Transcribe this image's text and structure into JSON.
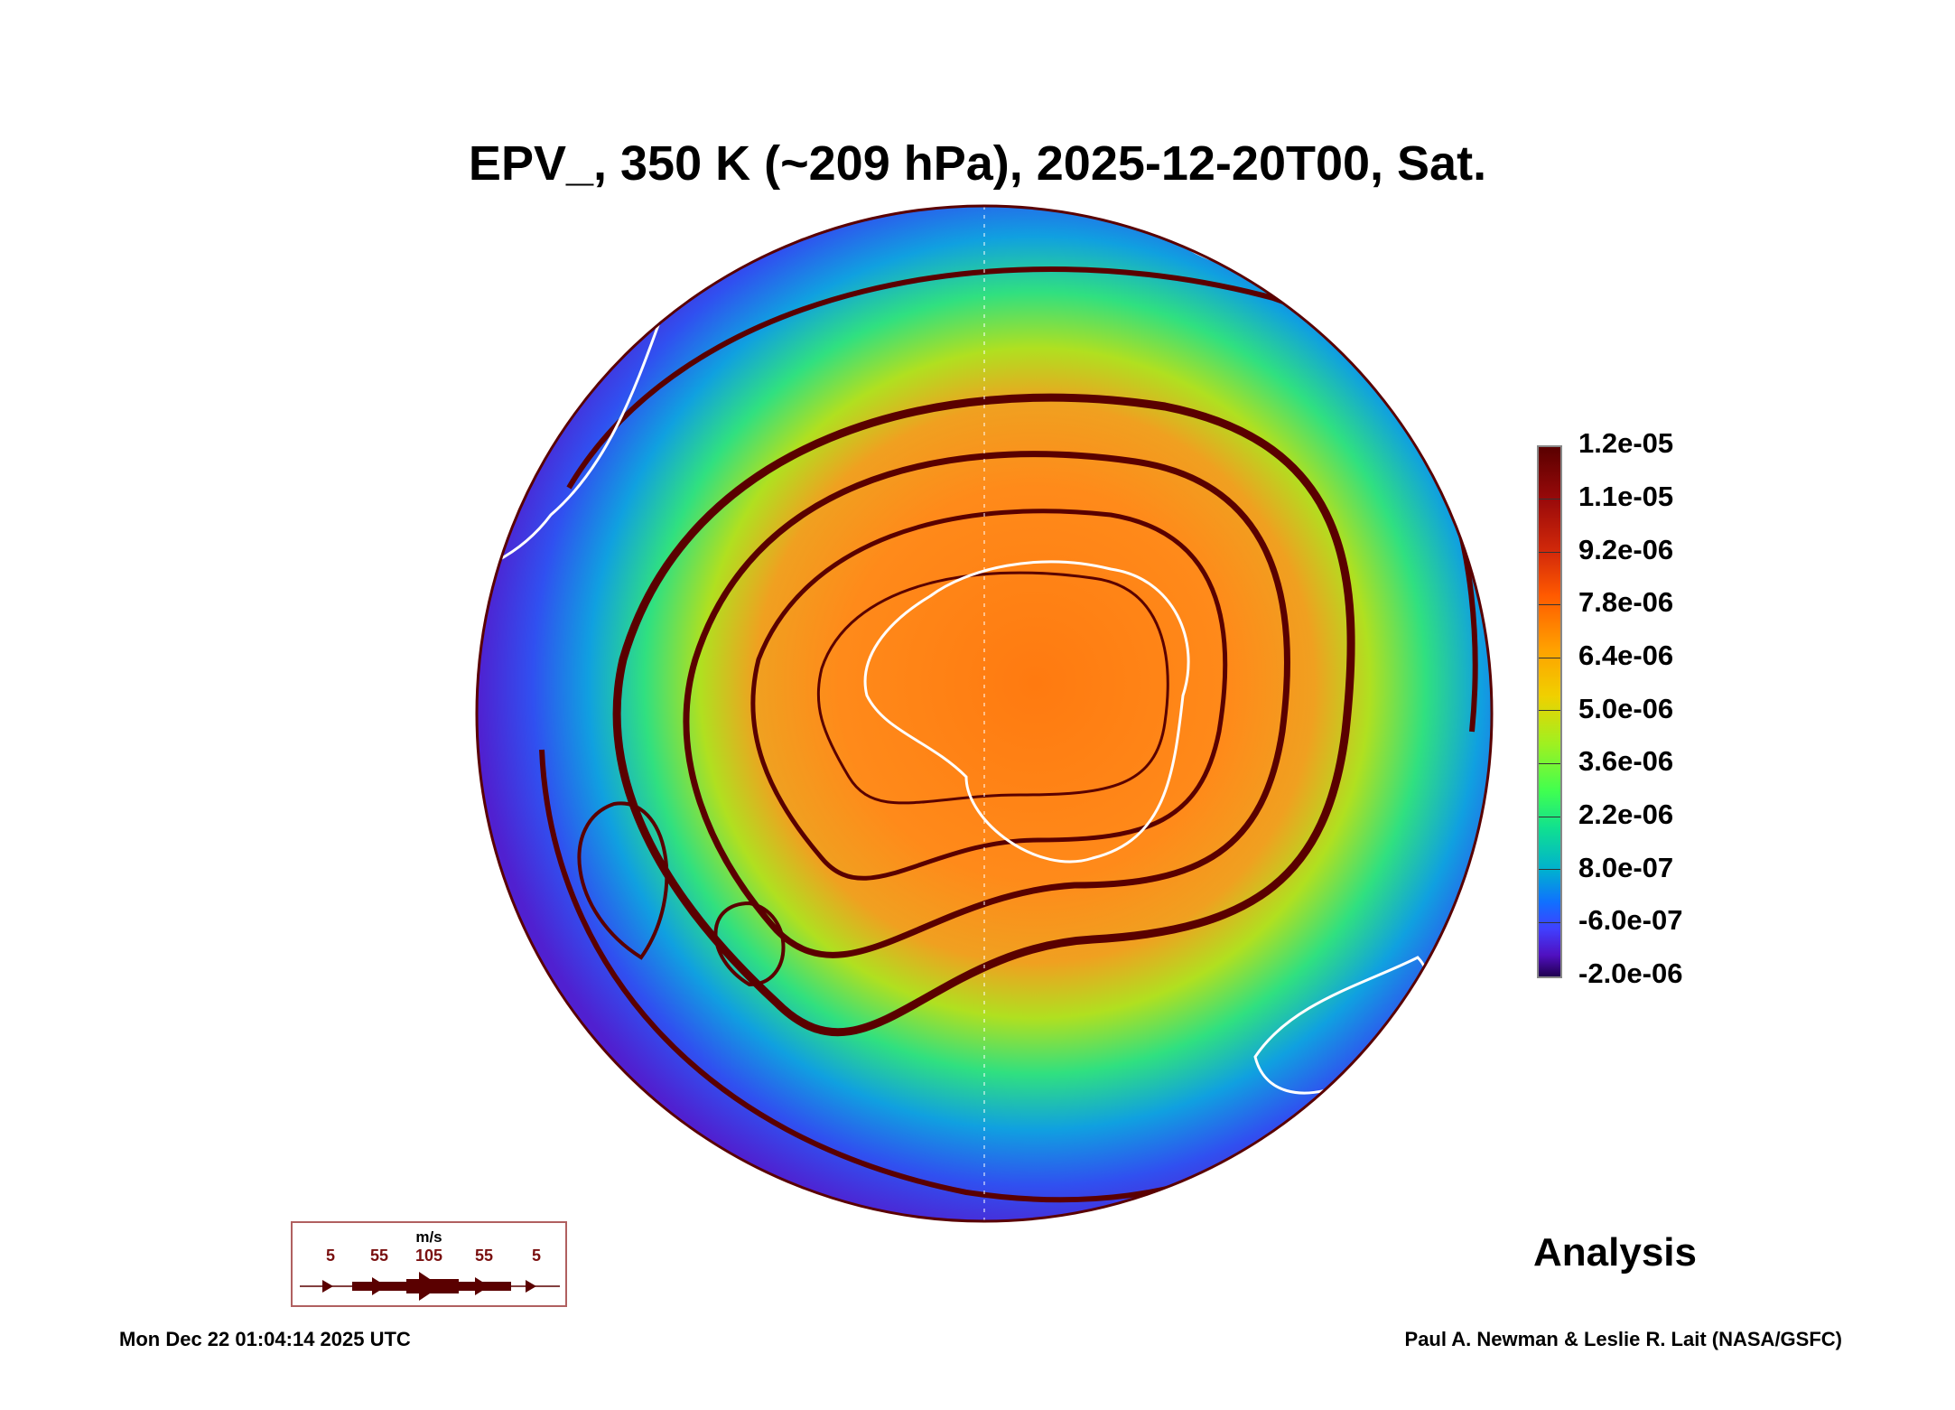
{
  "title": "EPV_, 350 K (~209 hPa), 2025-12-20T00, Sat.",
  "colorbar": {
    "labels": [
      "1.2e-05",
      "1.1e-05",
      "9.2e-06",
      "7.8e-06",
      "6.4e-06",
      "5.0e-06",
      "3.6e-06",
      "2.2e-06",
      "8.0e-07",
      "-6.0e-07",
      "-2.0e-06"
    ],
    "range": [
      -2e-06,
      1.2e-05
    ]
  },
  "wind_legend": {
    "unit": "m/s",
    "labels": [
      "5",
      "55",
      "105",
      "55",
      "5"
    ]
  },
  "analysis_label": "Analysis",
  "timestamp": "Mon Dec 22 01:04:14 2025 UTC",
  "credit": "Paul A. Newman & Leslie R. Lait (NASA/GSFC)",
  "colors": {
    "streamline": "#5a0000",
    "coast": "#ffffff"
  }
}
